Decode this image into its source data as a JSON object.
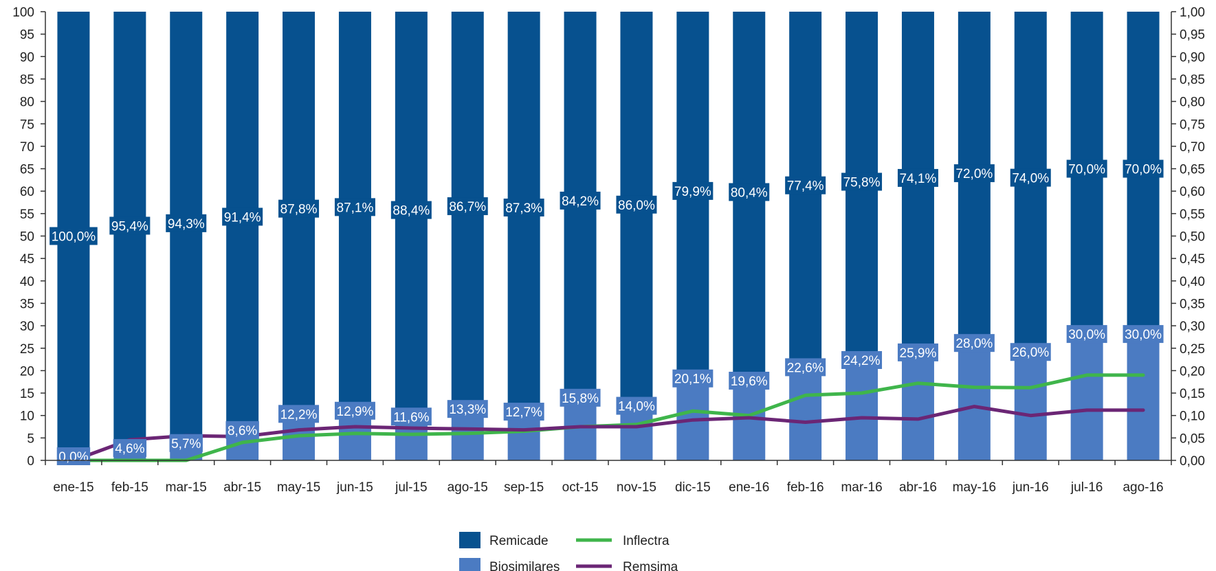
{
  "chart_data": {
    "type": "bar",
    "stacked": true,
    "categories": [
      "ene-15",
      "feb-15",
      "mar-15",
      "abr-15",
      "may-15",
      "jun-15",
      "jul-15",
      "ago-15",
      "sep-15",
      "oct-15",
      "nov-15",
      "dic-15",
      "ene-16",
      "feb-16",
      "mar-16",
      "abr-16",
      "may-16",
      "jun-16",
      "jul-16",
      "ago-16"
    ],
    "series": [
      {
        "name": "Remicade",
        "axis": "left",
        "color": "#07518f",
        "values": [
          100.0,
          95.4,
          94.3,
          91.4,
          87.8,
          87.1,
          88.4,
          86.7,
          87.3,
          84.2,
          86.0,
          79.9,
          80.4,
          77.4,
          75.8,
          74.1,
          72.0,
          74.0,
          70.0,
          70.0
        ],
        "labels": [
          "100,0%",
          "95,4%",
          "94,3%",
          "91,4%",
          "87,8%",
          "87,1%",
          "88,4%",
          "86,7%",
          "87,3%",
          "84,2%",
          "86,0%",
          "79,9%",
          "80,4%",
          "77,4%",
          "75,8%",
          "74,1%",
          "72,0%",
          "74,0%",
          "70,0%",
          "70,0%"
        ]
      },
      {
        "name": "Biosimilares",
        "axis": "left",
        "color": "#4b7bc2",
        "values": [
          0.0,
          4.6,
          5.7,
          8.6,
          12.2,
          12.9,
          11.6,
          13.3,
          12.7,
          15.8,
          14.0,
          20.1,
          19.6,
          22.6,
          24.2,
          25.9,
          28.0,
          26.0,
          30.0,
          30.0
        ],
        "labels": [
          "0,0%",
          "4,6%",
          "5,7%",
          "8,6%",
          "12,2%",
          "12,9%",
          "11,6%",
          "13,3%",
          "12,7%",
          "15,8%",
          "14,0%",
          "20,1%",
          "19,6%",
          "22,6%",
          "24,2%",
          "25,9%",
          "28,0%",
          "26,0%",
          "30,0%",
          "30,0%"
        ]
      },
      {
        "name": "Inflectra",
        "type": "line",
        "axis": "right",
        "color": "#3fb54b",
        "values": [
          0.0,
          0.0,
          0.0,
          0.04,
          0.055,
          0.06,
          0.058,
          0.06,
          0.065,
          0.075,
          0.08,
          0.11,
          0.1,
          0.145,
          0.15,
          0.172,
          0.163,
          0.162,
          0.19,
          0.19
        ]
      },
      {
        "name": "Remsima",
        "type": "line",
        "axis": "right",
        "color": "#6b2675",
        "values": [
          0.0,
          0.046,
          0.055,
          0.053,
          0.068,
          0.075,
          0.072,
          0.07,
          0.068,
          0.075,
          0.075,
          0.09,
          0.095,
          0.085,
          0.095,
          0.092,
          0.12,
          0.1,
          0.112,
          0.112
        ]
      }
    ],
    "y_left": {
      "min": 0,
      "max": 100,
      "ticks": [
        "0",
        "5",
        "10",
        "15",
        "20",
        "25",
        "30",
        "35",
        "40",
        "45",
        "50",
        "55",
        "60",
        "65",
        "70",
        "75",
        "80",
        "85",
        "90",
        "95",
        "100"
      ]
    },
    "y_right": {
      "min": 0,
      "max": 1,
      "ticks": [
        "0,00",
        "0,05",
        "0,10",
        "0,15",
        "0,20",
        "0,25",
        "0,30",
        "0,35",
        "0,40",
        "0,45",
        "0,50",
        "0,55",
        "0,60",
        "0,65",
        "0,70",
        "0,75",
        "0,80",
        "0,85",
        "0,90",
        "0,95",
        "1,00"
      ]
    },
    "grid": false,
    "legend": {
      "position": "bottom-center",
      "items": [
        "Remicade",
        "Inflectra",
        "Biosimilares",
        "Remsima"
      ]
    }
  }
}
